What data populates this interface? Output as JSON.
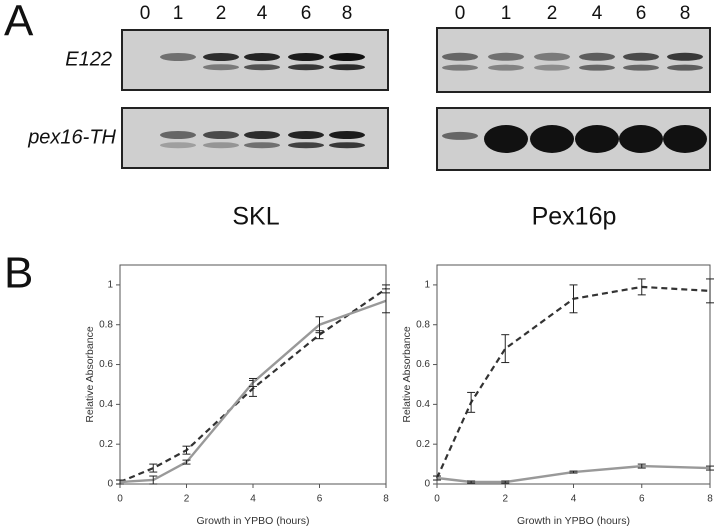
{
  "panel_a": {
    "label": "A",
    "rows": [
      "E122",
      "pex16-TH"
    ],
    "groups": [
      {
        "lanes": [
          "0",
          "1",
          "2",
          "4",
          "6",
          "8"
        ],
        "title": "SKL"
      },
      {
        "lanes": [
          "0",
          "1",
          "2",
          "4",
          "6",
          "8"
        ],
        "title": "Pex16p"
      }
    ]
  },
  "panel_b_label": "B",
  "chart_data": [
    {
      "type": "line",
      "xlabel": "Growth in YPBO (hours)",
      "ylabel": "Relative Absorbance",
      "x": [
        0,
        1,
        2,
        4,
        6,
        8
      ],
      "xlim": [
        0,
        8
      ],
      "ylim": [
        0,
        1.1
      ],
      "xticks": [
        0,
        2,
        4,
        6,
        8
      ],
      "yticks": [
        0,
        0.2,
        0.4,
        0.6,
        0.8,
        1
      ],
      "series": [
        {
          "color": "#333333",
          "dashed": true,
          "values": [
            0.01,
            0.08,
            0.17,
            0.48,
            0.75,
            0.98
          ],
          "errors": [
            0.01,
            0.02,
            0.02,
            0.04,
            0.02,
            0.02
          ]
        },
        {
          "color": "#999999",
          "dashed": false,
          "values": [
            0.01,
            0.02,
            0.11,
            0.51,
            0.8,
            0.92
          ],
          "errors": [
            0.01,
            0.02,
            0.01,
            0.02,
            0.04,
            0.06
          ]
        }
      ]
    },
    {
      "type": "line",
      "xlabel": "Growth in YPBO (hours)",
      "ylabel": "Relative Absorbance",
      "x": [
        0,
        1,
        2,
        4,
        6,
        8
      ],
      "xlim": [
        0,
        8
      ],
      "ylim": [
        0,
        1.1
      ],
      "xticks": [
        0,
        2,
        4,
        6,
        8
      ],
      "yticks": [
        0,
        0.2,
        0.4,
        0.6,
        0.8,
        1
      ],
      "series": [
        {
          "color": "#333333",
          "dashed": true,
          "values": [
            0.03,
            0.41,
            0.68,
            0.93,
            0.99,
            0.97
          ],
          "errors": [
            0.01,
            0.05,
            0.07,
            0.07,
            0.04,
            0.06
          ]
        },
        {
          "color": "#999999",
          "dashed": false,
          "values": [
            0.03,
            0.01,
            0.01,
            0.06,
            0.09,
            0.08
          ],
          "errors": [
            0.01,
            0.005,
            0.005,
            0.005,
            0.01,
            0.01
          ]
        }
      ]
    }
  ]
}
